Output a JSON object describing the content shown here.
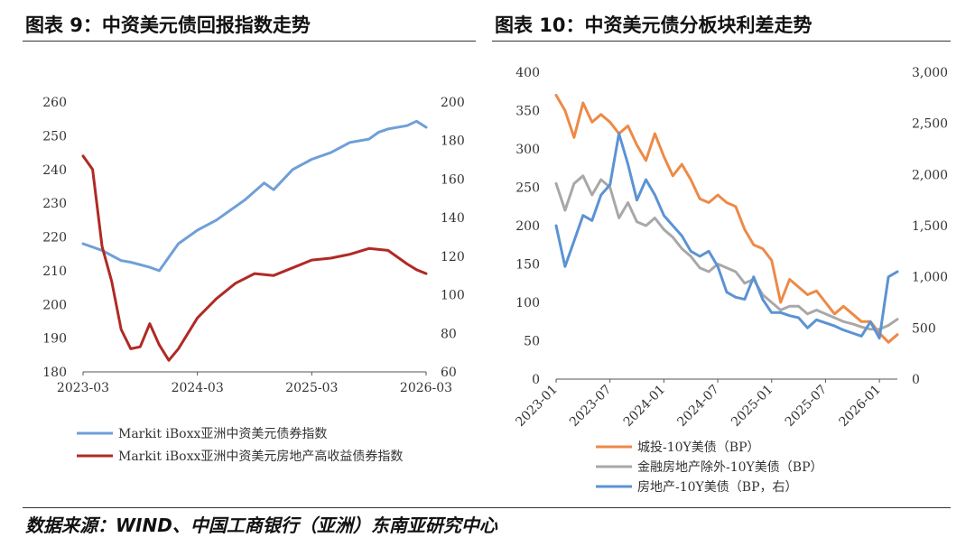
{
  "left_panel": {
    "title": "图表 9：中资美元债回报指数走势"
  },
  "right_panel": {
    "title": "图表 10：中资美元债分板块利差走势"
  },
  "source": "数据来源：WIND、中国工商银行（亚洲）东南亚研究中心",
  "colors": {
    "blue": "#6f9fd8",
    "red": "#b02a25",
    "orange": "#ed8a47",
    "gray": "#a8a8a8",
    "rblue": "#5b93d3"
  },
  "chart_data": [
    {
      "type": "line",
      "x_ticks": [
        "2023-03",
        "2024-03",
        "2025-03",
        "2026-03"
      ],
      "ylim_left": [
        180,
        260
      ],
      "yticks_left": [
        "180",
        "190",
        "200",
        "210",
        "220",
        "230",
        "240",
        "250",
        "260"
      ],
      "ylim_right": [
        60,
        200
      ],
      "yticks_right": [
        "60",
        "80",
        "100",
        "120",
        "140",
        "160",
        "180",
        "200"
      ],
      "legend_position": "bottom",
      "series": [
        {
          "name": "Markit iBoxx亚洲中资美元债券指数",
          "axis": "left",
          "x": [
            "2023-03",
            "2023-05",
            "2023-07",
            "2023-08",
            "2023-10",
            "2023-11",
            "2024-01",
            "2024-03",
            "2024-05",
            "2024-06",
            "2024-08",
            "2024-10",
            "2024-11",
            "2025-01",
            "2025-03",
            "2025-05",
            "2025-07",
            "2025-09",
            "2025-10",
            "2025-11",
            "2026-01",
            "2026-02",
            "2026-03"
          ],
          "values": [
            218,
            216,
            213,
            212.5,
            211,
            210,
            218,
            222,
            225,
            227,
            231,
            236,
            234,
            240,
            243,
            245,
            248,
            249,
            251,
            252,
            253,
            254.3,
            252.5
          ]
        },
        {
          "name": "Markit iBoxx亚洲中资美元房地产高收益债券指数",
          "axis": "right",
          "x": [
            "2023-03",
            "2023-04",
            "2023-05",
            "2023-06",
            "2023-07",
            "2023-08",
            "2023-09",
            "2023-10",
            "2023-11",
            "2023-12",
            "2024-01",
            "2024-03",
            "2024-05",
            "2024-07",
            "2024-09",
            "2024-11",
            "2025-01",
            "2025-03",
            "2025-05",
            "2025-07",
            "2025-09",
            "2025-11",
            "2026-01",
            "2026-02",
            "2026-03"
          ],
          "values": [
            172,
            165,
            125,
            107,
            82,
            72,
            73,
            85,
            74,
            66,
            72,
            88,
            98,
            106,
            111,
            110,
            114,
            118,
            119,
            121,
            124,
            123,
            116,
            113,
            111
          ]
        }
      ]
    },
    {
      "type": "line",
      "x_ticks": [
        "2023-01",
        "2023-07",
        "2024-01",
        "2024-07",
        "2025-01",
        "2025-07",
        "2026-01"
      ],
      "ylim_left": [
        0,
        400
      ],
      "yticks_left": [
        "0",
        "50",
        "100",
        "150",
        "200",
        "250",
        "300",
        "350",
        "400"
      ],
      "ylim_right": [
        0,
        3000
      ],
      "yticks_right": [
        "0",
        "500",
        "1,000",
        "1,500",
        "2,000",
        "2,500",
        "3,000"
      ],
      "legend_position": "bottom",
      "series": [
        {
          "name": "城投-10Y美债（BP）",
          "axis": "left",
          "x": [
            "2023-01",
            "2023-02",
            "2023-03",
            "2023-04",
            "2023-05",
            "2023-06",
            "2023-07",
            "2023-08",
            "2023-09",
            "2023-10",
            "2023-11",
            "2023-12",
            "2024-01",
            "2024-02",
            "2024-03",
            "2024-04",
            "2024-05",
            "2024-06",
            "2024-07",
            "2024-08",
            "2024-09",
            "2024-10",
            "2024-11",
            "2024-12",
            "2025-01",
            "2025-02",
            "2025-03",
            "2025-04",
            "2025-05",
            "2025-06",
            "2025-07",
            "2025-08",
            "2025-09",
            "2025-10",
            "2025-11",
            "2025-12",
            "2026-01",
            "2026-02",
            "2026-03"
          ],
          "values": [
            370,
            350,
            315,
            360,
            335,
            345,
            335,
            320,
            330,
            305,
            285,
            320,
            290,
            265,
            280,
            260,
            235,
            230,
            240,
            230,
            225,
            195,
            175,
            170,
            155,
            100,
            130,
            120,
            110,
            115,
            100,
            85,
            95,
            85,
            75,
            75,
            60,
            48,
            58
          ]
        },
        {
          "name": "金融房地产除外-10Y美债（BP）",
          "axis": "left",
          "x": [
            "2023-01",
            "2023-02",
            "2023-03",
            "2023-04",
            "2023-05",
            "2023-06",
            "2023-07",
            "2023-08",
            "2023-09",
            "2023-10",
            "2023-11",
            "2023-12",
            "2024-01",
            "2024-02",
            "2024-03",
            "2024-04",
            "2024-05",
            "2024-06",
            "2024-07",
            "2024-08",
            "2024-09",
            "2024-10",
            "2024-11",
            "2024-12",
            "2025-01",
            "2025-02",
            "2025-03",
            "2025-04",
            "2025-05",
            "2025-06",
            "2025-07",
            "2025-08",
            "2025-09",
            "2025-10",
            "2025-11",
            "2025-12",
            "2026-01",
            "2026-02",
            "2026-03"
          ],
          "values": [
            255,
            220,
            255,
            265,
            240,
            260,
            250,
            210,
            230,
            205,
            200,
            210,
            195,
            185,
            170,
            160,
            145,
            140,
            150,
            145,
            140,
            125,
            130,
            110,
            100,
            90,
            95,
            95,
            85,
            90,
            85,
            80,
            75,
            72,
            68,
            65,
            65,
            70,
            78
          ]
        },
        {
          "name": "房地产-10Y美债（BP，右）",
          "axis": "right",
          "x": [
            "2023-01",
            "2023-02",
            "2023-03",
            "2023-04",
            "2023-05",
            "2023-06",
            "2023-07",
            "2023-08",
            "2023-09",
            "2023-10",
            "2023-11",
            "2023-12",
            "2024-01",
            "2024-02",
            "2024-03",
            "2024-04",
            "2024-05",
            "2024-06",
            "2024-07",
            "2024-08",
            "2024-09",
            "2024-10",
            "2024-11",
            "2024-12",
            "2025-01",
            "2025-02",
            "2025-03",
            "2025-04",
            "2025-05",
            "2025-06",
            "2025-07",
            "2025-08",
            "2025-09",
            "2025-10",
            "2025-11",
            "2025-12",
            "2026-01",
            "2026-02",
            "2026-03"
          ],
          "values": [
            1500,
            1100,
            1350,
            1600,
            1550,
            1800,
            1900,
            2400,
            2100,
            1750,
            1950,
            1800,
            1600,
            1500,
            1400,
            1250,
            1200,
            1250,
            1100,
            850,
            800,
            780,
            1000,
            780,
            650,
            650,
            620,
            600,
            500,
            580,
            550,
            520,
            480,
            450,
            420,
            560,
            400,
            1000,
            1050
          ]
        }
      ]
    }
  ]
}
